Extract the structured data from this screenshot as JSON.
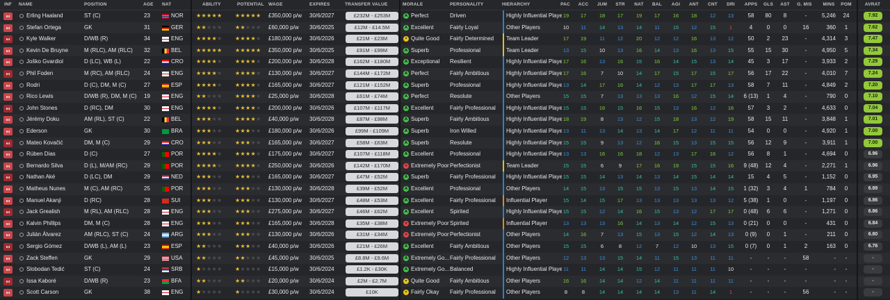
{
  "headers": {
    "inf": "INF",
    "name": "NAME",
    "position": "POSITION",
    "age": "AGE",
    "nat": "NAT",
    "ability": "ABILITY",
    "potential": "POTENTIAL",
    "wage": "WAGE",
    "expires": "EXPIRES",
    "transfer_value": "TRANSFER VALUE",
    "morale": "MORALE",
    "personality": "PERSONALITY",
    "hierarchy": "HIERARCHY",
    "pac": "PAC",
    "acc": "ACC",
    "jum": "JUM",
    "str": "STR",
    "nat2": "NAT",
    "bal": "BAL",
    "agi": "AGI",
    "ant": "ANT",
    "cnt": "CNT",
    "dri": "DRI",
    "apps": "APPS",
    "gls": "GLS",
    "ast": "AST",
    "gmis": "G. MIS",
    "mins": "MINS",
    "pom": "POM",
    "avrat": "AVRAT"
  },
  "colors": {
    "attr_green": "#7fd13a",
    "attr_teal": "#34c2a4",
    "attr_blue": "#3c8fe0",
    "attr_white": "#e6e6e6",
    "attr_red": "#e0474c",
    "star_gold": "#e9c039",
    "hier_blue": "#2b7fd4",
    "hier_yellow": "#e3c11f",
    "hier_orange": "#e38a1f"
  },
  "players": [
    {
      "name": "Erling Haaland",
      "pos": "ST (C)",
      "age": "23",
      "nat": "NOR",
      "ability": 5,
      "potential": 5,
      "wage": "£350,000 p/w",
      "expires": "30/6/2027",
      "tv": "£232M - £253M",
      "morale": "Perfect",
      "personality": "Driven",
      "hierarchy": "Highly Influential Player",
      "attrs": [
        "19",
        "17",
        "18",
        "17",
        "19",
        "17",
        "16",
        "18",
        "12",
        "13"
      ],
      "apps": "58",
      "gls": "80",
      "ast": "8",
      "gmis": "-",
      "mins": "5,246",
      "pom": "24",
      "avrat": "7.92"
    },
    {
      "name": "Stefan Ortega",
      "pos": "GK",
      "age": "31",
      "nat": "GER",
      "ability": 2,
      "potential": 2,
      "wage": "£60,000 p/w",
      "expires": "30/6/2025",
      "tv": "£12M - £14.5M",
      "morale": "Excellent",
      "personality": "Fairly Loyal",
      "hierarchy": "Other Players",
      "attrs": [
        "10",
        "11",
        "14",
        "13",
        "14",
        "11",
        "15",
        "12",
        "15",
        "1"
      ],
      "apps": "4",
      "gls": "0",
      "ast": "0",
      "gmis": "16",
      "mins": "360",
      "pom": "1",
      "avrat": "7.62"
    },
    {
      "name": "Kyle Walker",
      "pos": "D/WB (R)",
      "age": "34",
      "nat": "ENG",
      "ability": 4,
      "potential": 4,
      "wage": "£180,000 p/w",
      "expires": "30/6/2026",
      "tv": "£21M - £23M",
      "morale": "Quite Good",
      "personality": "Fairly Determined",
      "hierarchy": "Team Leader",
      "attrs": [
        "17",
        "19",
        "11",
        "12",
        "20",
        "12",
        "12",
        "16",
        "13",
        "12"
      ],
      "apps": "50",
      "gls": "2",
      "ast": "23",
      "gmis": "-",
      "mins": "4,314",
      "pom": "3",
      "avrat": "7.47"
    },
    {
      "name": "Kevin De Bruyne",
      "pos": "M (RLC), AM (RLC)",
      "age": "32",
      "nat": "BEL",
      "ability": 5,
      "potential": 5,
      "wage": "£350,000 p/w",
      "expires": "30/6/2025",
      "tv": "£91M - £99M",
      "morale": "Superb",
      "personality": "Professional",
      "hierarchy": "Team Leader",
      "attrs": [
        "13",
        "15",
        "10",
        "13",
        "16",
        "14",
        "13",
        "16",
        "13",
        "15"
      ],
      "apps": "55",
      "gls": "15",
      "ast": "30",
      "gmis": "-",
      "mins": "4,950",
      "pom": "5",
      "avrat": "7.34"
    },
    {
      "name": "Joško Gvardiol",
      "pos": "D (LC), WB (L)",
      "age": "22",
      "nat": "CRO",
      "ability": 4,
      "potential": 4,
      "wage": "£200,000 p/w",
      "expires": "30/6/2028",
      "tv": "£162M - £180M",
      "morale": "Exceptional",
      "personality": "Resilient",
      "hierarchy": "Highly Influential Player",
      "attrs": [
        "17",
        "16",
        "13",
        "16",
        "15",
        "16",
        "14",
        "15",
        "13",
        "14"
      ],
      "apps": "45",
      "gls": "3",
      "ast": "17",
      "gmis": "-",
      "mins": "3,933",
      "pom": "2",
      "avrat": "7.29"
    },
    {
      "name": "Phil Foden",
      "pos": "M (RC), AM (RLC)",
      "age": "24",
      "nat": "ENG",
      "ability": 4,
      "potential": 4,
      "wage": "£130,000 p/w",
      "expires": "30/6/2027",
      "tv": "£144M - £172M",
      "morale": "Perfect",
      "personality": "Fairly Ambitious",
      "hierarchy": "Highly Influential Player",
      "attrs": [
        "17",
        "16",
        "7",
        "10",
        "14",
        "17",
        "15",
        "17",
        "15",
        "17"
      ],
      "apps": "56",
      "gls": "17",
      "ast": "22",
      "gmis": "-",
      "mins": "4,010",
      "pom": "7",
      "avrat": "7.24"
    },
    {
      "name": "Rodri",
      "pos": "D (C), DM, M (C)",
      "age": "27",
      "nat": "ESP",
      "ability": 4,
      "potential": 4,
      "wage": "£165,000 p/w",
      "expires": "30/6/2027",
      "tv": "£121M - £152M",
      "morale": "Superb",
      "personality": "Professional",
      "hierarchy": "Highly Influential Player",
      "attrs": [
        "13",
        "14",
        "17",
        "16",
        "14",
        "12",
        "13",
        "17",
        "17",
        "13"
      ],
      "apps": "58",
      "gls": "7",
      "ast": "11",
      "gmis": "-",
      "mins": "4,849",
      "pom": "2",
      "avrat": "7.20"
    },
    {
      "name": "Rico Lewis",
      "pos": "D/WB (R), DM, M (C)",
      "age": "19",
      "nat": "ENG",
      "ability": 2,
      "potential": 4,
      "wage": "£25,000 p/w",
      "expires": "30/6/2028",
      "tv": "£61M - £74M",
      "morale": "Perfect",
      "personality": "Resolute",
      "hierarchy": "Other Players",
      "attrs": [
        "15",
        "15",
        "7",
        "13",
        "13",
        "13",
        "16",
        "12",
        "15",
        "14"
      ],
      "apps": "6 (13)",
      "gls": "1",
      "ast": "4",
      "gmis": "-",
      "mins": "790",
      "pom": "0",
      "avrat": "7.10"
    },
    {
      "name": "John Stones",
      "pos": "D (RC), DM",
      "age": "30",
      "nat": "ENG",
      "ability": 4,
      "potential": 4,
      "wage": "£200,000 p/w",
      "expires": "30/6/2026",
      "tv": "£107M - £117M",
      "morale": "Excellent",
      "personality": "Fairly Professional",
      "hierarchy": "Highly Influential Player",
      "attrs": [
        "15",
        "15",
        "16",
        "15",
        "16",
        "15",
        "13",
        "16",
        "12",
        "16"
      ],
      "apps": "57",
      "gls": "3",
      "ast": "2",
      "gmis": "-",
      "mins": "4,633",
      "pom": "0",
      "avrat": "7.04"
    },
    {
      "name": "Jérémy Doku",
      "pos": "AM (RL), ST (C)",
      "age": "22",
      "nat": "BEL",
      "ability": 3,
      "potential": 4,
      "wage": "£40,000 p/w",
      "expires": "30/6/2028",
      "tv": "£87M - £98M",
      "morale": "Superb",
      "personality": "Fairly Ambitious",
      "hierarchy": "Highly Influential Player",
      "attrs": [
        "18",
        "19",
        "8",
        "13",
        "12",
        "15",
        "18",
        "13",
        "12",
        "19"
      ],
      "apps": "58",
      "gls": "15",
      "ast": "11",
      "gmis": "-",
      "mins": "3,848",
      "pom": "1",
      "avrat": "7.01"
    },
    {
      "name": "Ederson",
      "pos": "GK",
      "age": "30",
      "nat": "BRA",
      "ability": 3,
      "potential": 3,
      "wage": "£180,000 p/w",
      "expires": "30/6/2026",
      "tv": "£99M - £109M",
      "morale": "Superb",
      "personality": "Iron Willed",
      "hierarchy": "Highly Influential Player",
      "attrs": [
        "13",
        "11",
        "13",
        "14",
        "13",
        "14",
        "17",
        "12",
        "11",
        "11"
      ],
      "apps": "54",
      "gls": "0",
      "ast": "0",
      "gmis": "-",
      "mins": "4,920",
      "pom": "1",
      "avrat": "7.00"
    },
    {
      "name": "Mateo Kovačić",
      "pos": "DM, M (C)",
      "age": "29",
      "nat": "CRO",
      "ability": 3,
      "potential": 3,
      "wage": "£165,000 p/w",
      "expires": "30/6/2027",
      "tv": "£58M - £63M",
      "morale": "Superb",
      "personality": "Resolute",
      "hierarchy": "Highly Influential Player",
      "attrs": [
        "15",
        "15",
        "9",
        "13",
        "12",
        "16",
        "15",
        "13",
        "15",
        "15"
      ],
      "apps": "56",
      "gls": "12",
      "ast": "9",
      "gmis": "-",
      "mins": "3,911",
      "pom": "1",
      "avrat": "7.00"
    },
    {
      "name": "Rúben Dias",
      "pos": "D (C)",
      "age": "27",
      "nat": "POR",
      "ability": 4,
      "potential": 4,
      "wage": "£175,000 p/w",
      "expires": "30/6/2027",
      "tv": "£107M - £118M",
      "morale": "Excellent",
      "personality": "Professional",
      "hierarchy": "Highly Influential Player",
      "attrs": [
        "13",
        "13",
        "16",
        "16",
        "18",
        "12",
        "13",
        "17",
        "16",
        "12"
      ],
      "apps": "56",
      "gls": "8",
      "ast": "1",
      "gmis": "-",
      "mins": "4,694",
      "pom": "0",
      "avrat": "6.96"
    },
    {
      "name": "Bernardo Silva",
      "pos": "D (L), M/AM (RC)",
      "age": "29",
      "nat": "POR",
      "ability": 4,
      "potential": 4,
      "wage": "£250,000 p/w",
      "expires": "30/6/2026",
      "tv": "£142M - £170M",
      "morale": "Extremely Poor",
      "personality": "Perfectionist",
      "hierarchy": "Team Leader",
      "attrs": [
        "15",
        "15",
        "6",
        "9",
        "17",
        "16",
        "19",
        "15",
        "15",
        "16"
      ],
      "apps": "9 (48)",
      "gls": "12",
      "ast": "4",
      "gmis": "-",
      "mins": "2,271",
      "pom": "1",
      "avrat": "6.96"
    },
    {
      "name": "Nathan Aké",
      "pos": "D (LC), DM",
      "age": "29",
      "nat": "NED",
      "ability": 3,
      "potential": 3,
      "wage": "£165,000 p/w",
      "expires": "30/6/2027",
      "tv": "£47M - £52M",
      "morale": "Superb",
      "personality": "Fairly Professional",
      "hierarchy": "Highly Influential Player",
      "attrs": [
        "15",
        "15",
        "14",
        "13",
        "14",
        "13",
        "14",
        "15",
        "14",
        "14"
      ],
      "apps": "15",
      "gls": "4",
      "ast": "5",
      "gmis": "-",
      "mins": "1,152",
      "pom": "0",
      "avrat": "6.95"
    },
    {
      "name": "Matheus Nunes",
      "pos": "M (C), AM (RC)",
      "age": "25",
      "nat": "POR",
      "ability": 3,
      "potential": 3,
      "wage": "£130,000 p/w",
      "expires": "30/6/2028",
      "tv": "£39M - £52M",
      "morale": "Excellent",
      "personality": "Professional",
      "hierarchy": "Other Players",
      "attrs": [
        "14",
        "15",
        "13",
        "15",
        "15",
        "13",
        "15",
        "13",
        "14",
        "15"
      ],
      "apps": "1 (32)",
      "gls": "3",
      "ast": "4",
      "gmis": "1",
      "mins": "784",
      "pom": "0",
      "avrat": "6.89"
    },
    {
      "name": "Manuel Akanji",
      "pos": "D (RC)",
      "age": "28",
      "nat": "SUI",
      "ability": 3,
      "potential": 3,
      "wage": "£130,000 p/w",
      "expires": "30/6/2027",
      "tv": "£48M - £53M",
      "morale": "Excellent",
      "personality": "Fairly Professional",
      "hierarchy": "Influential Player",
      "attrs": [
        "15",
        "14",
        "15",
        "17",
        "13",
        "13",
        "13",
        "13",
        "13",
        "12"
      ],
      "apps": "5 (38)",
      "gls": "1",
      "ast": "0",
      "gmis": "-",
      "mins": "1,197",
      "pom": "0",
      "avrat": "6.86"
    },
    {
      "name": "Jack Grealish",
      "pos": "M (RL), AM (RLC)",
      "age": "28",
      "nat": "ENG",
      "ability": 3,
      "potential": 3,
      "wage": "£275,000 p/w",
      "expires": "30/6/2027",
      "tv": "£46M - £62M",
      "morale": "Excellent",
      "personality": "Spirited",
      "hierarchy": "Highly Influential Player",
      "attrs": [
        "15",
        "15",
        "12",
        "14",
        "16",
        "15",
        "13",
        "12",
        "17",
        "17"
      ],
      "apps": "0 (48)",
      "gls": "6",
      "ast": "6",
      "gmis": "-",
      "mins": "1,271",
      "pom": "0",
      "avrat": "6.86"
    },
    {
      "name": "Kalvin Phillips",
      "pos": "DM, M (C)",
      "age": "28",
      "nat": "ENG",
      "ability": 3,
      "potential": 3,
      "wage": "£165,000 p/w",
      "expires": "30/6/2028",
      "tv": "£35M - £38M",
      "morale": "Extremely Poor",
      "personality": "Spirited",
      "hierarchy": "Influential Player",
      "attrs": [
        "13",
        "13",
        "13",
        "16",
        "14",
        "13",
        "14",
        "12",
        "15",
        "13"
      ],
      "apps": "0 (21)",
      "gls": "0",
      "ast": "0",
      "gmis": "-",
      "mins": "431",
      "pom": "0",
      "avrat": "6.84"
    },
    {
      "name": "Julián Álvarez",
      "pos": "AM (RLC), ST (C)",
      "age": "24",
      "nat": "ARG",
      "ability": 3,
      "potential": 3,
      "wage": "£130,000 p/w",
      "expires": "30/6/2026",
      "tv": "£31M - £34M",
      "morale": "Extremely Poor",
      "personality": "Perfectionist",
      "hierarchy": "Other Players",
      "attrs": [
        "14",
        "16",
        "7",
        "13",
        "15",
        "13",
        "15",
        "12",
        "14",
        "13"
      ],
      "apps": "0 (9)",
      "gls": "0",
      "ast": "1",
      "gmis": "-",
      "mins": "211",
      "pom": "0",
      "avrat": "6.80"
    },
    {
      "name": "Sergio Gómez",
      "pos": "D/WB (L), AM (L)",
      "age": "23",
      "nat": "ESP",
      "ability": 2,
      "potential": 3,
      "wage": "£40,000 p/w",
      "expires": "30/6/2026",
      "tv": "£21M - £26M",
      "morale": "Excellent",
      "personality": "Fairly Ambitious",
      "hierarchy": "Other Players",
      "attrs": [
        "15",
        "15",
        "6",
        "8",
        "12",
        "7",
        "12",
        "10",
        "13",
        "15"
      ],
      "apps": "0 (7)",
      "gls": "0",
      "ast": "1",
      "gmis": "2",
      "mins": "163",
      "pom": "0",
      "avrat": "6.76"
    },
    {
      "name": "Zack Steffen",
      "pos": "GK",
      "age": "29",
      "nat": "USA",
      "ability": 2,
      "potential": 2,
      "wage": "£45,000 p/w",
      "expires": "30/6/2025",
      "tv": "£8.8M - £9.6M",
      "morale": "Extremely Go...",
      "personality": "Fairly Professional",
      "hierarchy": "Other Players",
      "attrs": [
        "12",
        "13",
        "13",
        "15",
        "14",
        "11",
        "15",
        "13",
        "11",
        "11"
      ],
      "apps": "-",
      "gls": "-",
      "ast": "-",
      "gmis": "58",
      "mins": "-",
      "pom": "-",
      "avrat": "-"
    },
    {
      "name": "Slobodan Tedić",
      "pos": "ST (C)",
      "age": "24",
      "nat": "SRB",
      "ability": 1,
      "potential": 1,
      "wage": "£15,000 p/w",
      "expires": "30/6/2024",
      "tv": "£1.2K - £30K",
      "morale": "Extremely Go...",
      "personality": "Balanced",
      "hierarchy": "Highly Influential Player",
      "attrs": [
        "11",
        "11",
        "14",
        "14",
        "15",
        "12",
        "11",
        "11",
        "11",
        "10"
      ],
      "apps": "-",
      "gls": "-",
      "ast": "-",
      "gmis": "-",
      "mins": "-",
      "pom": "-",
      "avrat": "-"
    },
    {
      "name": "Issa Kaboré",
      "pos": "D/WB (R)",
      "age": "23",
      "nat": "BFA",
      "ability": 2,
      "potential": 2,
      "wage": "£20,000 p/w",
      "expires": "30/6/2024",
      "tv": "£2M - £2.7M",
      "morale": "Quite Good",
      "personality": "Fairly Ambitious",
      "hierarchy": "Other Players",
      "attrs": [
        "16",
        "16",
        "14",
        "14",
        "12",
        "14",
        "11",
        "11",
        "11",
        "11"
      ],
      "apps": "-",
      "gls": "-",
      "ast": "-",
      "gmis": "-",
      "mins": "-",
      "pom": "-",
      "avrat": "-"
    },
    {
      "name": "Scott Carson",
      "pos": "GK",
      "age": "38",
      "nat": "ENG",
      "ability": 1,
      "potential": 1,
      "wage": "£30,000 p/w",
      "expires": "30/6/2024",
      "tv": "£10K",
      "morale": "Fairly Okay",
      "personality": "Fairly Professional",
      "hierarchy": "Other Players",
      "attrs": [
        "8",
        "8",
        "14",
        "14",
        "14",
        "14",
        "13",
        "11",
        "14",
        "1"
      ],
      "apps": "-",
      "gls": "-",
      "ast": "-",
      "gmis": "56",
      "mins": "-",
      "pom": "-",
      "avrat": "-"
    }
  ]
}
